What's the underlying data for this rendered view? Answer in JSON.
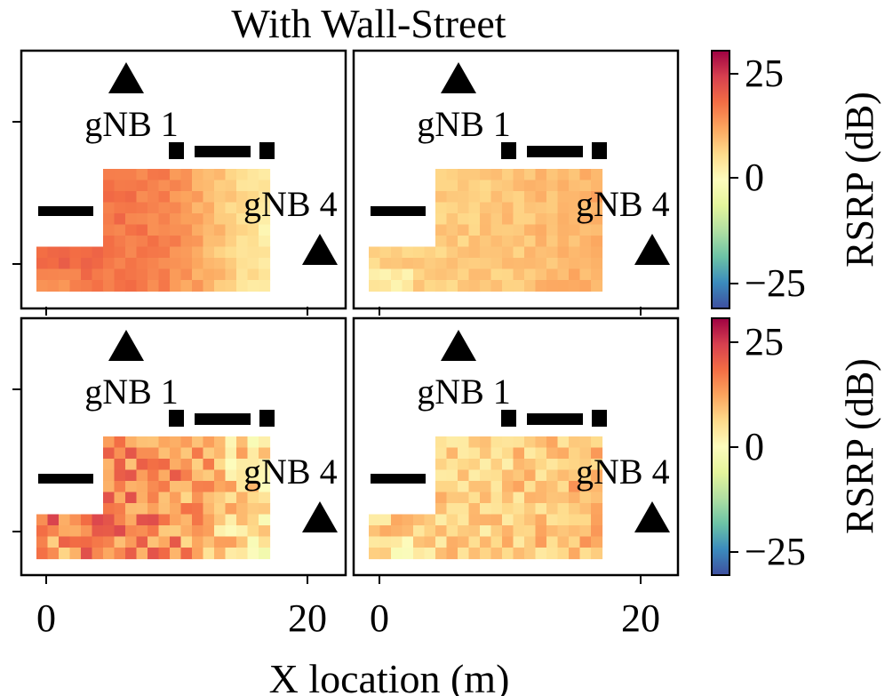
{
  "chart_data": {
    "type": "heatmap",
    "title": "With Wall-Street",
    "xlabel": "X location (m)",
    "x_ticks": [
      "0",
      "20"
    ],
    "colorbar": {
      "label": "RSRP (dB)",
      "ticks": [
        "25",
        "0",
        "−25"
      ],
      "range": [
        -30,
        30
      ],
      "colormap": "Spectral_r",
      "colors": [
        "#3e4fa0",
        "#3b8bbd",
        "#6cc3a6",
        "#b0dfa2",
        "#e5f59c",
        "#fdfcbd",
        "#fedb8b",
        "#fca55e",
        "#f36d44",
        "#d73f4f",
        "#9e0142"
      ]
    },
    "annotations": {
      "gnb1": "gNB 1",
      "gnb4": "gNB 4"
    },
    "panels": [
      {
        "id": "top-left",
        "base": 13,
        "west_boost": 6,
        "east_drop": 11,
        "noise": 2,
        "seed": 11
      },
      {
        "id": "top-right",
        "base": 9,
        "west_boost": -2,
        "east_drop": -2,
        "noise": 2,
        "seed": 23
      },
      {
        "id": "bottom-left",
        "base": 12,
        "west_boost": 6,
        "east_drop": 10,
        "noise": 7,
        "seed": 37
      },
      {
        "id": "bottom-right",
        "base": 7,
        "west_boost": 0,
        "east_drop": -3,
        "noise": 5,
        "seed": 53
      }
    ]
  }
}
